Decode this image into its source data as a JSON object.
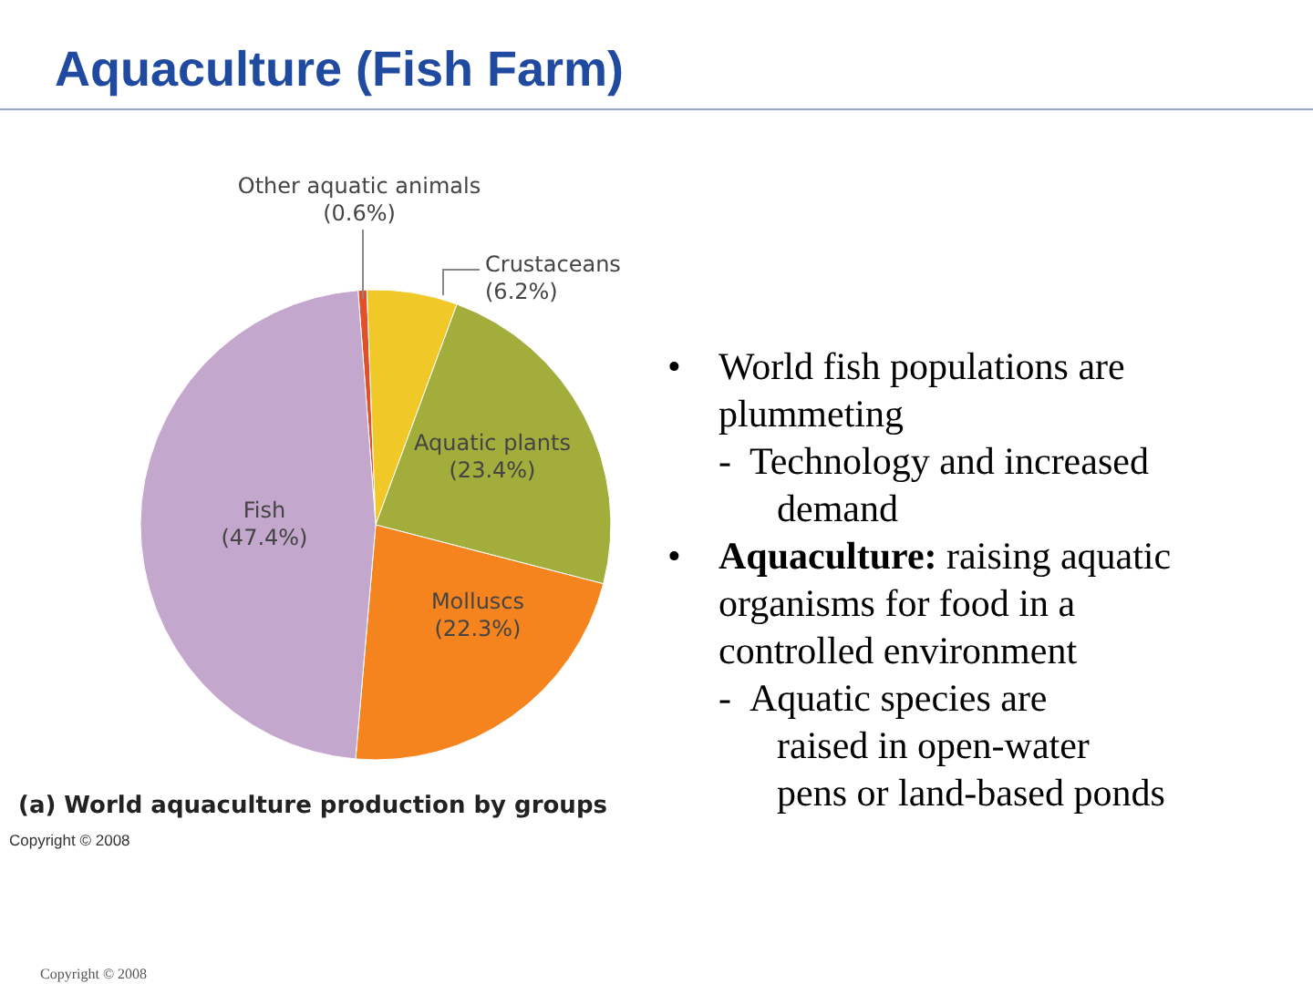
{
  "chart_data": {
    "type": "pie",
    "title": "Aquaculture (Fish Farm)",
    "subtitle": "(a) World aquaculture production by groups",
    "categories": [
      "Other aquatic animals",
      "Crustaceans",
      "Aquatic plants",
      "Molluscs",
      "Fish"
    ],
    "values": [
      0.6,
      6.2,
      23.4,
      22.3,
      47.4
    ],
    "value_labels": [
      "(0.6%)",
      "(6.2%)",
      "(23.4%)",
      "(22.3%)",
      "(47.4%)"
    ],
    "colors": [
      "#e0502a",
      "#f0c828",
      "#a3ad3b",
      "#f5841f",
      "#c4a7cc"
    ],
    "annotations": [
      "Copyright © 2008",
      "• World fish populations are plummeting",
      "- Technology and increased demand",
      "• Aquaculture: raising aquatic organisms for food in a controlled environment",
      "- Aquatic species are raised in open-water pens or land-based ponds",
      "Copyright © 2008"
    ]
  }
}
